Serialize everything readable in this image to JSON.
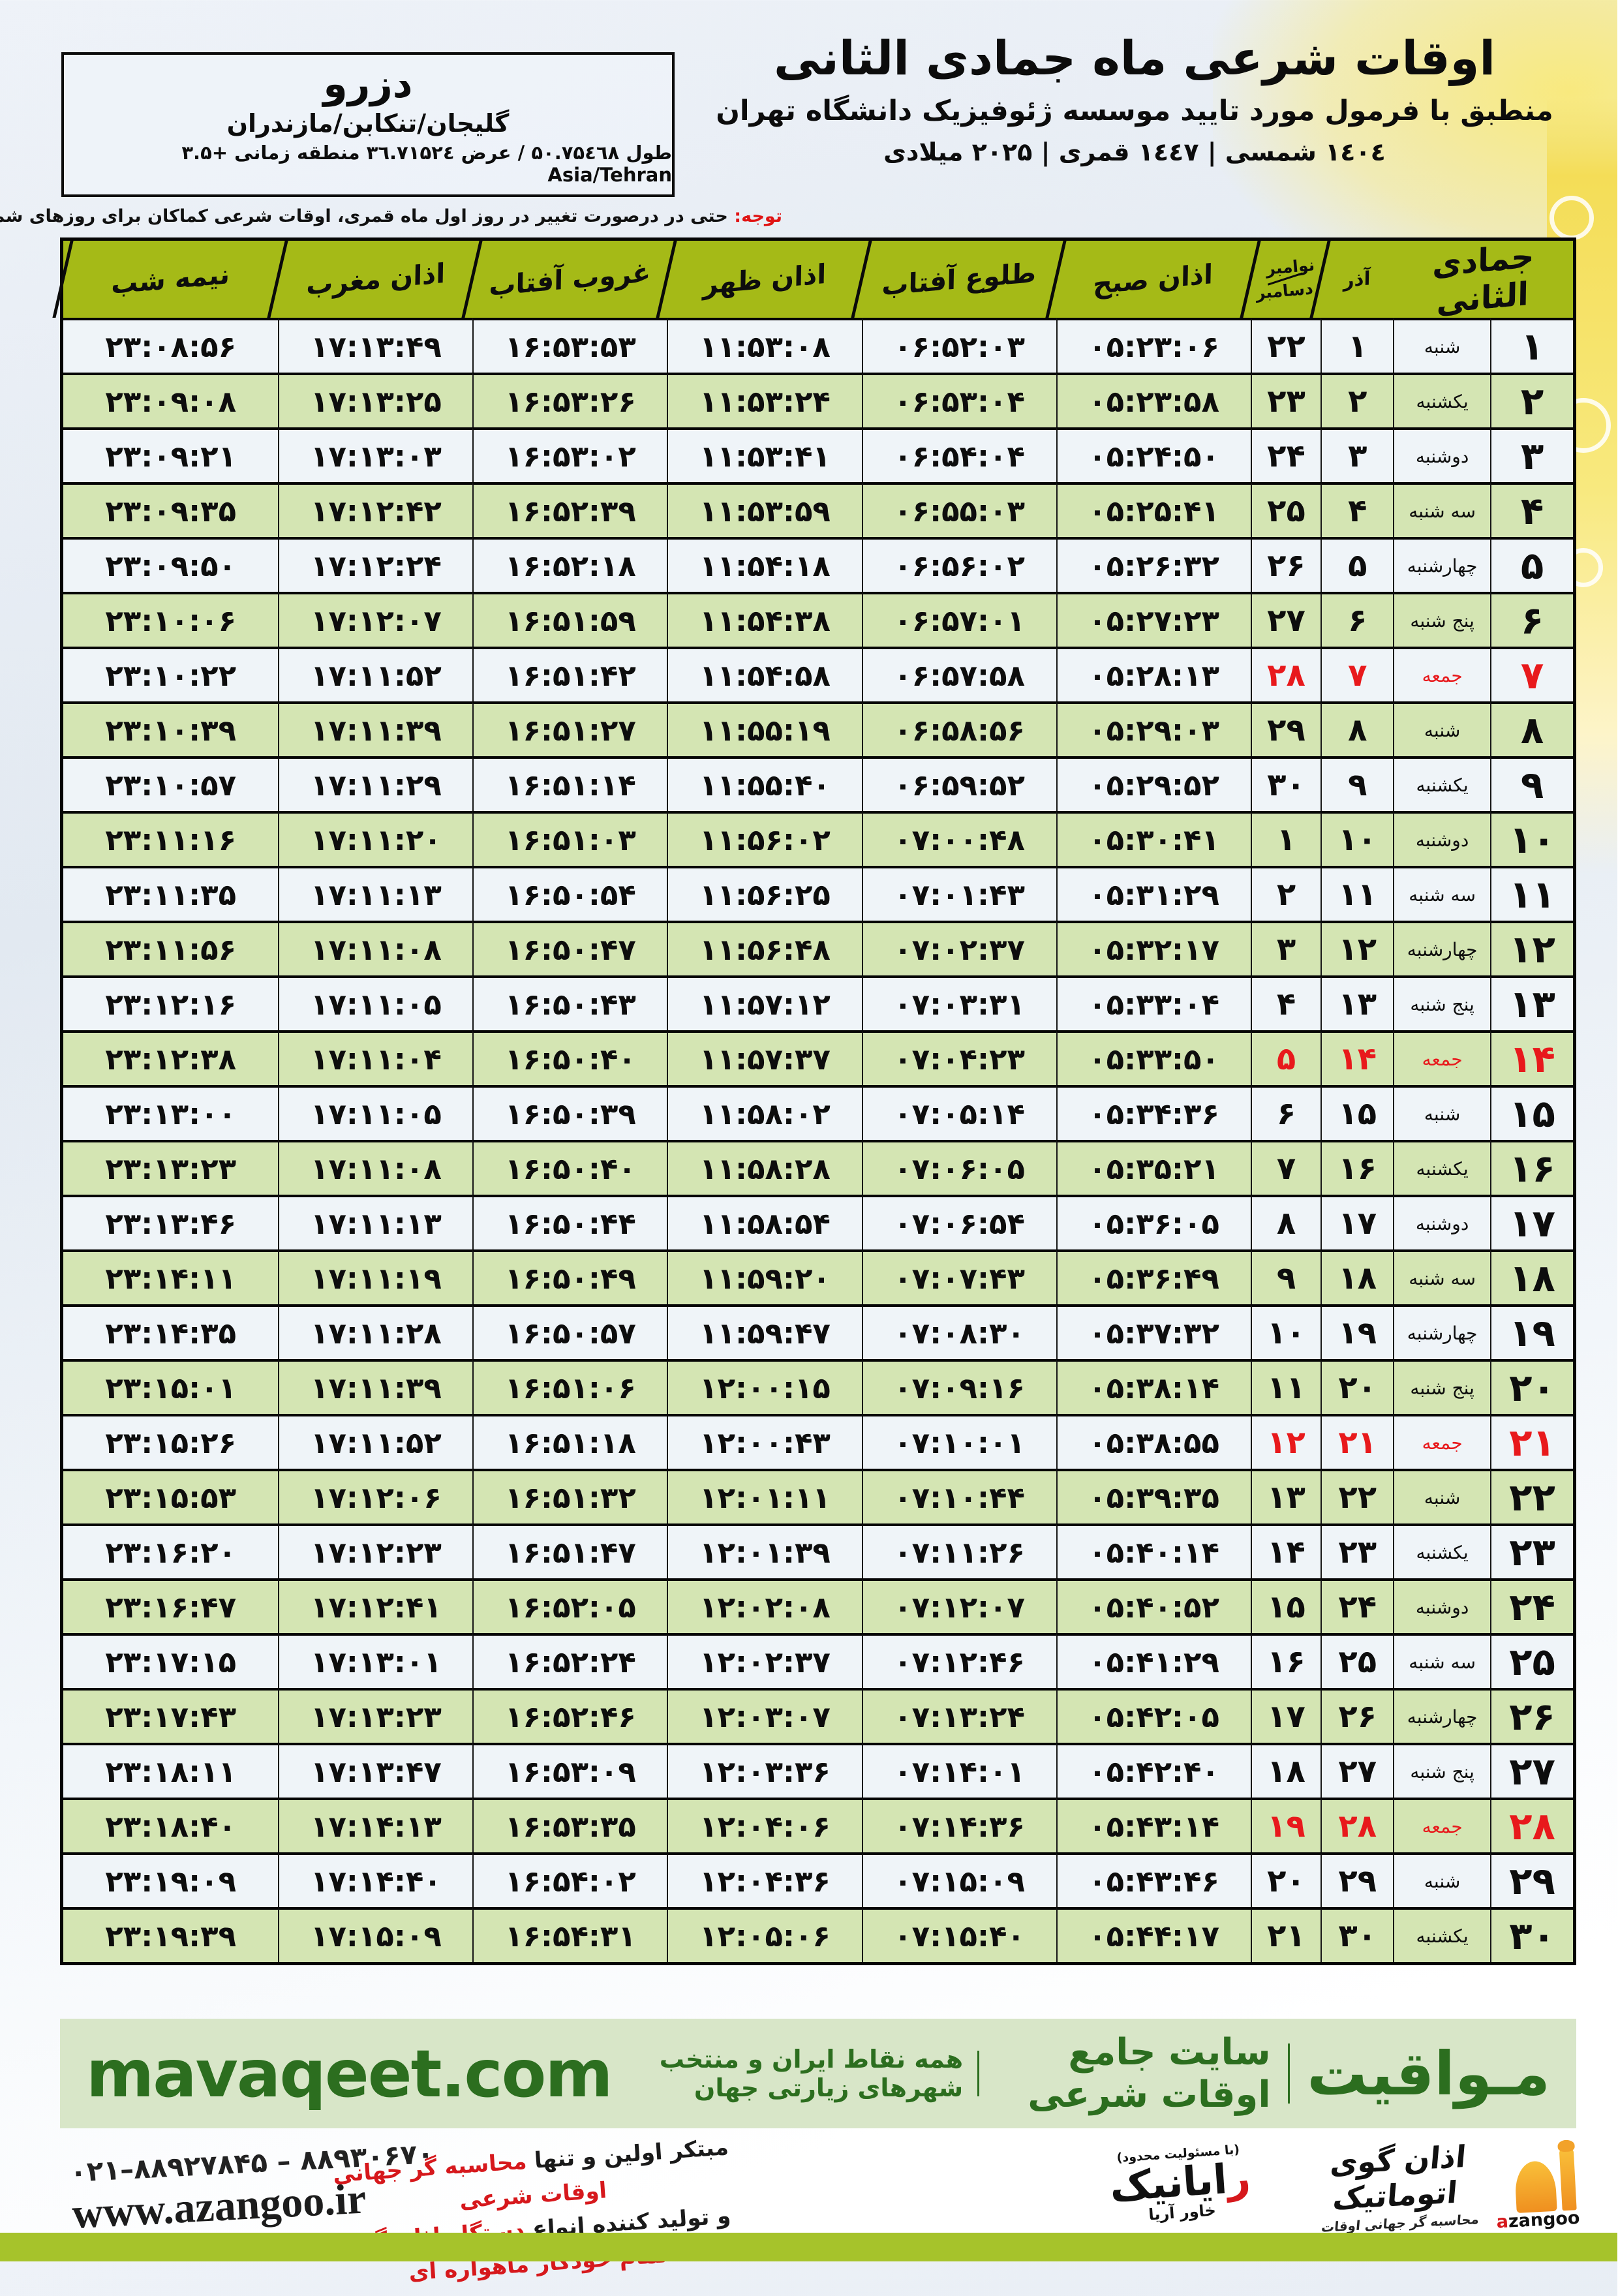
{
  "header": {
    "title": "اوقات شرعی ماه جمادی الثانی",
    "subtitle": "منطبق با فرمول مورد تایید موسسه ژئوفیزیک دانشگاه تهران",
    "calendar_line": "۱٤۰٤ شمسی | ۱٤٤۷ قمری | ۲۰۲۵ میلادی"
  },
  "location": {
    "name": "دزرو",
    "region": "گلیجان/تنکابن/مازندران",
    "coords": "طول ۵۰.۷۵٤٦۸ / عرض ۳٦.۷۱۵۲٤ منطقه زمانی +۳.۵ Asia/Tehran"
  },
  "note": {
    "label": "توجه:",
    "text": " حتی در درصورت تغییر در روز اول ماه قمری، اوقات شرعی کماکان برای روزهای شمسی و میلادی معتبر است."
  },
  "table": {
    "headers": {
      "month": "جمادی الثانی",
      "azar": "آذر",
      "greg_top": "نوامبر",
      "greg_bottom": "دسامبر",
      "sobh": "اذان صبح",
      "tolu": "طلوع آفتاب",
      "zohr": "اذان ظهر",
      "ghorub": "غروب آفتاب",
      "maghreb": "اذان مغرب",
      "nimeh": "نیمه شب"
    },
    "rows": [
      {
        "day": "۱",
        "weekday": "شنبه",
        "azar": "۱",
        "greg": "۲۲",
        "sobh": "۰۵:۲۳:۰۶",
        "tolu": "۰۶:۵۲:۰۳",
        "zohr": "۱۱:۵۳:۰۸",
        "ghorub": "۱۶:۵۳:۵۳",
        "maghreb": "۱۷:۱۳:۴۹",
        "nimeh": "۲۳:۰۸:۵۶",
        "friday": false
      },
      {
        "day": "۲",
        "weekday": "یکشنبه",
        "azar": "۲",
        "greg": "۲۳",
        "sobh": "۰۵:۲۳:۵۸",
        "tolu": "۰۶:۵۳:۰۴",
        "zohr": "۱۱:۵۳:۲۴",
        "ghorub": "۱۶:۵۳:۲۶",
        "maghreb": "۱۷:۱۳:۲۵",
        "nimeh": "۲۳:۰۹:۰۸",
        "friday": false
      },
      {
        "day": "۳",
        "weekday": "دوشنبه",
        "azar": "۳",
        "greg": "۲۴",
        "sobh": "۰۵:۲۴:۵۰",
        "tolu": "۰۶:۵۴:۰۴",
        "zohr": "۱۱:۵۳:۴۱",
        "ghorub": "۱۶:۵۳:۰۲",
        "maghreb": "۱۷:۱۳:۰۳",
        "nimeh": "۲۳:۰۹:۲۱",
        "friday": false
      },
      {
        "day": "۴",
        "weekday": "سه شنبه",
        "azar": "۴",
        "greg": "۲۵",
        "sobh": "۰۵:۲۵:۴۱",
        "tolu": "۰۶:۵۵:۰۳",
        "zohr": "۱۱:۵۳:۵۹",
        "ghorub": "۱۶:۵۲:۳۹",
        "maghreb": "۱۷:۱۲:۴۲",
        "nimeh": "۲۳:۰۹:۳۵",
        "friday": false
      },
      {
        "day": "۵",
        "weekday": "چهارشنبه",
        "azar": "۵",
        "greg": "۲۶",
        "sobh": "۰۵:۲۶:۳۲",
        "tolu": "۰۶:۵۶:۰۲",
        "zohr": "۱۱:۵۴:۱۸",
        "ghorub": "۱۶:۵۲:۱۸",
        "maghreb": "۱۷:۱۲:۲۴",
        "nimeh": "۲۳:۰۹:۵۰",
        "friday": false
      },
      {
        "day": "۶",
        "weekday": "پنج شنبه",
        "azar": "۶",
        "greg": "۲۷",
        "sobh": "۰۵:۲۷:۲۳",
        "tolu": "۰۶:۵۷:۰۱",
        "zohr": "۱۱:۵۴:۳۸",
        "ghorub": "۱۶:۵۱:۵۹",
        "maghreb": "۱۷:۱۲:۰۷",
        "nimeh": "۲۳:۱۰:۰۶",
        "friday": false
      },
      {
        "day": "۷",
        "weekday": "جمعه",
        "azar": "۷",
        "greg": "۲۸",
        "sobh": "۰۵:۲۸:۱۳",
        "tolu": "۰۶:۵۷:۵۸",
        "zohr": "۱۱:۵۴:۵۸",
        "ghorub": "۱۶:۵۱:۴۲",
        "maghreb": "۱۷:۱۱:۵۲",
        "nimeh": "۲۳:۱۰:۲۲",
        "friday": true
      },
      {
        "day": "۸",
        "weekday": "شنبه",
        "azar": "۸",
        "greg": "۲۹",
        "sobh": "۰۵:۲۹:۰۳",
        "tolu": "۰۶:۵۸:۵۶",
        "zohr": "۱۱:۵۵:۱۹",
        "ghorub": "۱۶:۵۱:۲۷",
        "maghreb": "۱۷:۱۱:۳۹",
        "nimeh": "۲۳:۱۰:۳۹",
        "friday": false
      },
      {
        "day": "۹",
        "weekday": "یکشنبه",
        "azar": "۹",
        "greg": "۳۰",
        "sobh": "۰۵:۲۹:۵۲",
        "tolu": "۰۶:۵۹:۵۲",
        "zohr": "۱۱:۵۵:۴۰",
        "ghorub": "۱۶:۵۱:۱۴",
        "maghreb": "۱۷:۱۱:۲۹",
        "nimeh": "۲۳:۱۰:۵۷",
        "friday": false
      },
      {
        "day": "۱۰",
        "weekday": "دوشنبه",
        "azar": "۱۰",
        "greg": "۱",
        "sobh": "۰۵:۳۰:۴۱",
        "tolu": "۰۷:۰۰:۴۸",
        "zohr": "۱۱:۵۶:۰۲",
        "ghorub": "۱۶:۵۱:۰۳",
        "maghreb": "۱۷:۱۱:۲۰",
        "nimeh": "۲۳:۱۱:۱۶",
        "friday": false
      },
      {
        "day": "۱۱",
        "weekday": "سه شنبه",
        "azar": "۱۱",
        "greg": "۲",
        "sobh": "۰۵:۳۱:۲۹",
        "tolu": "۰۷:۰۱:۴۳",
        "zohr": "۱۱:۵۶:۲۵",
        "ghorub": "۱۶:۵۰:۵۴",
        "maghreb": "۱۷:۱۱:۱۳",
        "nimeh": "۲۳:۱۱:۳۵",
        "friday": false
      },
      {
        "day": "۱۲",
        "weekday": "چهارشنبه",
        "azar": "۱۲",
        "greg": "۳",
        "sobh": "۰۵:۳۲:۱۷",
        "tolu": "۰۷:۰۲:۳۷",
        "zohr": "۱۱:۵۶:۴۸",
        "ghorub": "۱۶:۵۰:۴۷",
        "maghreb": "۱۷:۱۱:۰۸",
        "nimeh": "۲۳:۱۱:۵۶",
        "friday": false
      },
      {
        "day": "۱۳",
        "weekday": "پنج شنبه",
        "azar": "۱۳",
        "greg": "۴",
        "sobh": "۰۵:۳۳:۰۴",
        "tolu": "۰۷:۰۳:۳۱",
        "zohr": "۱۱:۵۷:۱۲",
        "ghorub": "۱۶:۵۰:۴۳",
        "maghreb": "۱۷:۱۱:۰۵",
        "nimeh": "۲۳:۱۲:۱۶",
        "friday": false
      },
      {
        "day": "۱۴",
        "weekday": "جمعه",
        "azar": "۱۴",
        "greg": "۵",
        "sobh": "۰۵:۳۳:۵۰",
        "tolu": "۰۷:۰۴:۲۳",
        "zohr": "۱۱:۵۷:۳۷",
        "ghorub": "۱۶:۵۰:۴۰",
        "maghreb": "۱۷:۱۱:۰۴",
        "nimeh": "۲۳:۱۲:۳۸",
        "friday": true
      },
      {
        "day": "۱۵",
        "weekday": "شنبه",
        "azar": "۱۵",
        "greg": "۶",
        "sobh": "۰۵:۳۴:۳۶",
        "tolu": "۰۷:۰۵:۱۴",
        "zohr": "۱۱:۵۸:۰۲",
        "ghorub": "۱۶:۵۰:۳۹",
        "maghreb": "۱۷:۱۱:۰۵",
        "nimeh": "۲۳:۱۳:۰۰",
        "friday": false
      },
      {
        "day": "۱۶",
        "weekday": "یکشنبه",
        "azar": "۱۶",
        "greg": "۷",
        "sobh": "۰۵:۳۵:۲۱",
        "tolu": "۰۷:۰۶:۰۵",
        "zohr": "۱۱:۵۸:۲۸",
        "ghorub": "۱۶:۵۰:۴۰",
        "maghreb": "۱۷:۱۱:۰۸",
        "nimeh": "۲۳:۱۳:۲۳",
        "friday": false
      },
      {
        "day": "۱۷",
        "weekday": "دوشنبه",
        "azar": "۱۷",
        "greg": "۸",
        "sobh": "۰۵:۳۶:۰۵",
        "tolu": "۰۷:۰۶:۵۴",
        "zohr": "۱۱:۵۸:۵۴",
        "ghorub": "۱۶:۵۰:۴۴",
        "maghreb": "۱۷:۱۱:۱۳",
        "nimeh": "۲۳:۱۳:۴۶",
        "friday": false
      },
      {
        "day": "۱۸",
        "weekday": "سه شنبه",
        "azar": "۱۸",
        "greg": "۹",
        "sobh": "۰۵:۳۶:۴۹",
        "tolu": "۰۷:۰۷:۴۳",
        "zohr": "۱۱:۵۹:۲۰",
        "ghorub": "۱۶:۵۰:۴۹",
        "maghreb": "۱۷:۱۱:۱۹",
        "nimeh": "۲۳:۱۴:۱۱",
        "friday": false
      },
      {
        "day": "۱۹",
        "weekday": "چهارشنبه",
        "azar": "۱۹",
        "greg": "۱۰",
        "sobh": "۰۵:۳۷:۳۲",
        "tolu": "۰۷:۰۸:۳۰",
        "zohr": "۱۱:۵۹:۴۷",
        "ghorub": "۱۶:۵۰:۵۷",
        "maghreb": "۱۷:۱۱:۲۸",
        "nimeh": "۲۳:۱۴:۳۵",
        "friday": false
      },
      {
        "day": "۲۰",
        "weekday": "پنج شنبه",
        "azar": "۲۰",
        "greg": "۱۱",
        "sobh": "۰۵:۳۸:۱۴",
        "tolu": "۰۷:۰۹:۱۶",
        "zohr": "۱۲:۰۰:۱۵",
        "ghorub": "۱۶:۵۱:۰۶",
        "maghreb": "۱۷:۱۱:۳۹",
        "nimeh": "۲۳:۱۵:۰۱",
        "friday": false
      },
      {
        "day": "۲۱",
        "weekday": "جمعه",
        "azar": "۲۱",
        "greg": "۱۲",
        "sobh": "۰۵:۳۸:۵۵",
        "tolu": "۰۷:۱۰:۰۱",
        "zohr": "۱۲:۰۰:۴۳",
        "ghorub": "۱۶:۵۱:۱۸",
        "maghreb": "۱۷:۱۱:۵۲",
        "nimeh": "۲۳:۱۵:۲۶",
        "friday": true
      },
      {
        "day": "۲۲",
        "weekday": "شنبه",
        "azar": "۲۲",
        "greg": "۱۳",
        "sobh": "۰۵:۳۹:۳۵",
        "tolu": "۰۷:۱۰:۴۴",
        "zohr": "۱۲:۰۱:۱۱",
        "ghorub": "۱۶:۵۱:۳۲",
        "maghreb": "۱۷:۱۲:۰۶",
        "nimeh": "۲۳:۱۵:۵۳",
        "friday": false
      },
      {
        "day": "۲۳",
        "weekday": "یکشنبه",
        "azar": "۲۳",
        "greg": "۱۴",
        "sobh": "۰۵:۴۰:۱۴",
        "tolu": "۰۷:۱۱:۲۶",
        "zohr": "۱۲:۰۱:۳۹",
        "ghorub": "۱۶:۵۱:۴۷",
        "maghreb": "۱۷:۱۲:۲۳",
        "nimeh": "۲۳:۱۶:۲۰",
        "friday": false
      },
      {
        "day": "۲۴",
        "weekday": "دوشنبه",
        "azar": "۲۴",
        "greg": "۱۵",
        "sobh": "۰۵:۴۰:۵۲",
        "tolu": "۰۷:۱۲:۰۷",
        "zohr": "۱۲:۰۲:۰۸",
        "ghorub": "۱۶:۵۲:۰۵",
        "maghreb": "۱۷:۱۲:۴۱",
        "nimeh": "۲۳:۱۶:۴۷",
        "friday": false
      },
      {
        "day": "۲۵",
        "weekday": "سه شنبه",
        "azar": "۲۵",
        "greg": "۱۶",
        "sobh": "۰۵:۴۱:۲۹",
        "tolu": "۰۷:۱۲:۴۶",
        "zohr": "۱۲:۰۲:۳۷",
        "ghorub": "۱۶:۵۲:۲۴",
        "maghreb": "۱۷:۱۳:۰۱",
        "nimeh": "۲۳:۱۷:۱۵",
        "friday": false
      },
      {
        "day": "۲۶",
        "weekday": "چهارشنبه",
        "azar": "۲۶",
        "greg": "۱۷",
        "sobh": "۰۵:۴۲:۰۵",
        "tolu": "۰۷:۱۳:۲۴",
        "zohr": "۱۲:۰۳:۰۷",
        "ghorub": "۱۶:۵۲:۴۶",
        "maghreb": "۱۷:۱۳:۲۳",
        "nimeh": "۲۳:۱۷:۴۳",
        "friday": false
      },
      {
        "day": "۲۷",
        "weekday": "پنج شنبه",
        "azar": "۲۷",
        "greg": "۱۸",
        "sobh": "۰۵:۴۲:۴۰",
        "tolu": "۰۷:۱۴:۰۱",
        "zohr": "۱۲:۰۳:۳۶",
        "ghorub": "۱۶:۵۳:۰۹",
        "maghreb": "۱۷:۱۳:۴۷",
        "nimeh": "۲۳:۱۸:۱۱",
        "friday": false
      },
      {
        "day": "۲۸",
        "weekday": "جمعه",
        "azar": "۲۸",
        "greg": "۱۹",
        "sobh": "۰۵:۴۳:۱۴",
        "tolu": "۰۷:۱۴:۳۶",
        "zohr": "۱۲:۰۴:۰۶",
        "ghorub": "۱۶:۵۳:۳۵",
        "maghreb": "۱۷:۱۴:۱۳",
        "nimeh": "۲۳:۱۸:۴۰",
        "friday": true
      },
      {
        "day": "۲۹",
        "weekday": "شنبه",
        "azar": "۲۹",
        "greg": "۲۰",
        "sobh": "۰۵:۴۳:۴۶",
        "tolu": "۰۷:۱۵:۰۹",
        "zohr": "۱۲:۰۴:۳۶",
        "ghorub": "۱۶:۵۴:۰۲",
        "maghreb": "۱۷:۱۴:۴۰",
        "nimeh": "۲۳:۱۹:۰۹",
        "friday": false
      },
      {
        "day": "۳۰",
        "weekday": "یکشنبه",
        "azar": "۳۰",
        "greg": "۲۱",
        "sobh": "۰۵:۴۴:۱۷",
        "tolu": "۰۷:۱۵:۴۰",
        "zohr": "۱۲:۰۵:۰۶",
        "ghorub": "۱۶:۵۴:۳۱",
        "maghreb": "۱۷:۱۵:۰۹",
        "nimeh": "۲۳:۱۹:۳۹",
        "friday": false
      }
    ]
  },
  "footer": {
    "brand_fa": "مـواقیت",
    "site_desc": "سایت جامع اوقات شرعی",
    "site_desc2": "همه نقاط ایران و منتخب شهرهای زیارتی جهان",
    "brand_en": "mavaqeet.com"
  },
  "bottom": {
    "phones": "۰۲۱–۸۸۹۲۷۸۴۵ – ۸۸۹۳۰۶۷۰",
    "website": "www.azangoo.ir",
    "slogan1_black": "مبتکر اولین و تنها ",
    "slogan1_red": "محاسبه گر جهانی اوقات شرعی",
    "slogan2_black": "و تولید کننده انواع ",
    "slogan2_red": "دستگاه اذان گوی تمام خودکار ماهواره ای",
    "rayanik_note": "(با مسئولیت محدود)",
    "rayanik_initial": "ر",
    "rayanik_name": "ایانیک",
    "rayanik_sub": "خاور آریا",
    "azangoo_title": "اذان گوی اتوماتیک",
    "azangoo_sub": "محاسبه گر جهانی اوقات شرعی",
    "azangoo_en_initial": "a",
    "azangoo_en_rest": "zangoo"
  },
  "colors": {
    "header_olive": "#a5ba17",
    "row_green": "#d4e5b3",
    "row_white": "#eff4f8",
    "friday_red": "#e8191c",
    "footer_green_bg": "#d8e6c8",
    "footer_green_text": "#2c6e1f",
    "bottom_bar": "#a6c32b",
    "accent_yellow": "#f8e97e"
  }
}
